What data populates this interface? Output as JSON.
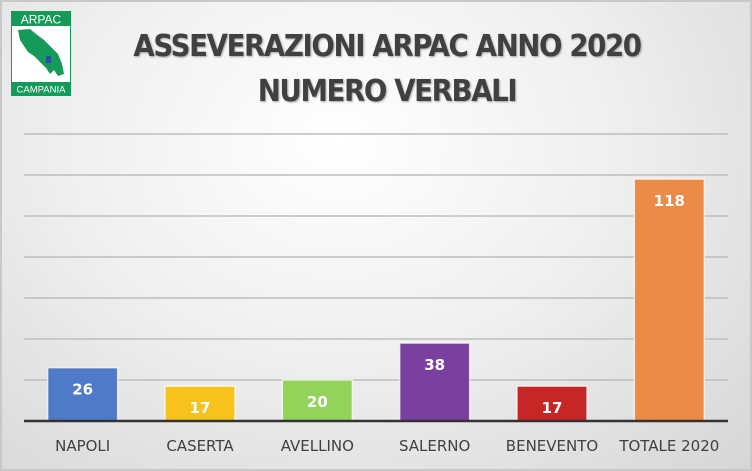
{
  "logo": {
    "top_text": "ARPAC",
    "bottom_text": "CAMPANIA",
    "color": "#159a5a"
  },
  "chart_data": {
    "type": "bar",
    "title_line1": "ASSEVERAZIONI ARPAC ANNO 2020",
    "title_line2": "NUMERO VERBALI",
    "categories": [
      "NAPOLI",
      "CASERTA",
      "AVELLINO",
      "SALERNO",
      "BENEVENTO",
      "TOTALE 2020"
    ],
    "values": [
      26,
      17,
      20,
      38,
      17,
      118
    ],
    "colors": [
      "#4f7ac7",
      "#f8c21d",
      "#93d35c",
      "#7a40a0",
      "#c62626",
      "#ec8a48"
    ],
    "ylim": [
      0,
      140
    ],
    "y_gridline_step": 20,
    "grid": true,
    "y_tick_labels_shown": false,
    "data_labels": true,
    "legend": "none"
  }
}
